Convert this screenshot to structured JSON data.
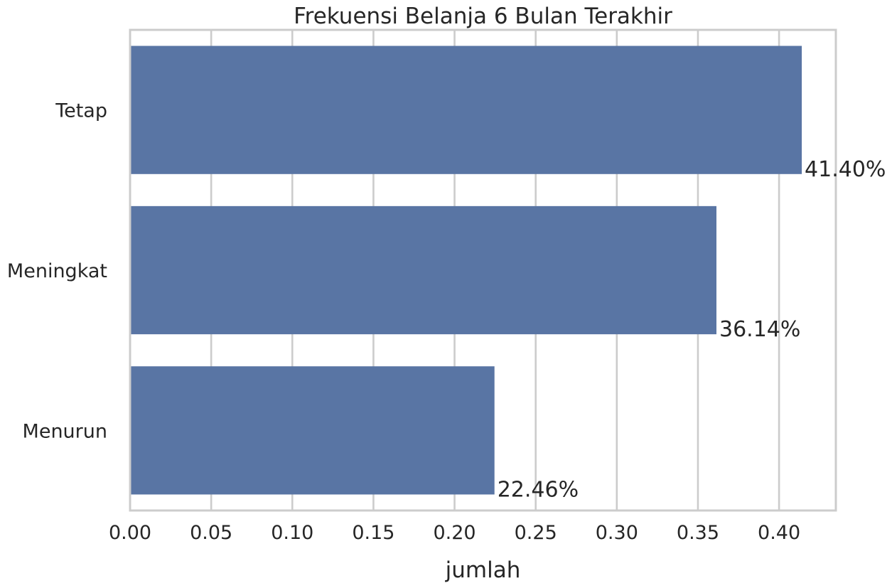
{
  "chart_data": {
    "type": "bar",
    "orientation": "horizontal",
    "title": "Frekuensi Belanja 6 Bulan Terakhir",
    "xlabel": "jumlah",
    "ylabel": "",
    "categories": [
      "Tetap",
      "Meningkat",
      "Menurun"
    ],
    "values": [
      0.414,
      0.3614,
      0.2246
    ],
    "bar_labels": [
      "41.40%",
      "36.14%",
      "22.46%"
    ],
    "xlim": [
      0,
      0.435
    ],
    "xticks": [
      0.0,
      0.05,
      0.1,
      0.15,
      0.2,
      0.25,
      0.3,
      0.35,
      0.4
    ],
    "xtick_labels": [
      "0.00",
      "0.05",
      "0.10",
      "0.15",
      "0.20",
      "0.25",
      "0.30",
      "0.35",
      "0.40"
    ],
    "grid": "x-axis vertical lines",
    "bar_color": "#5975a4",
    "grid_color": "#cccccc",
    "text_color": "#262626"
  }
}
